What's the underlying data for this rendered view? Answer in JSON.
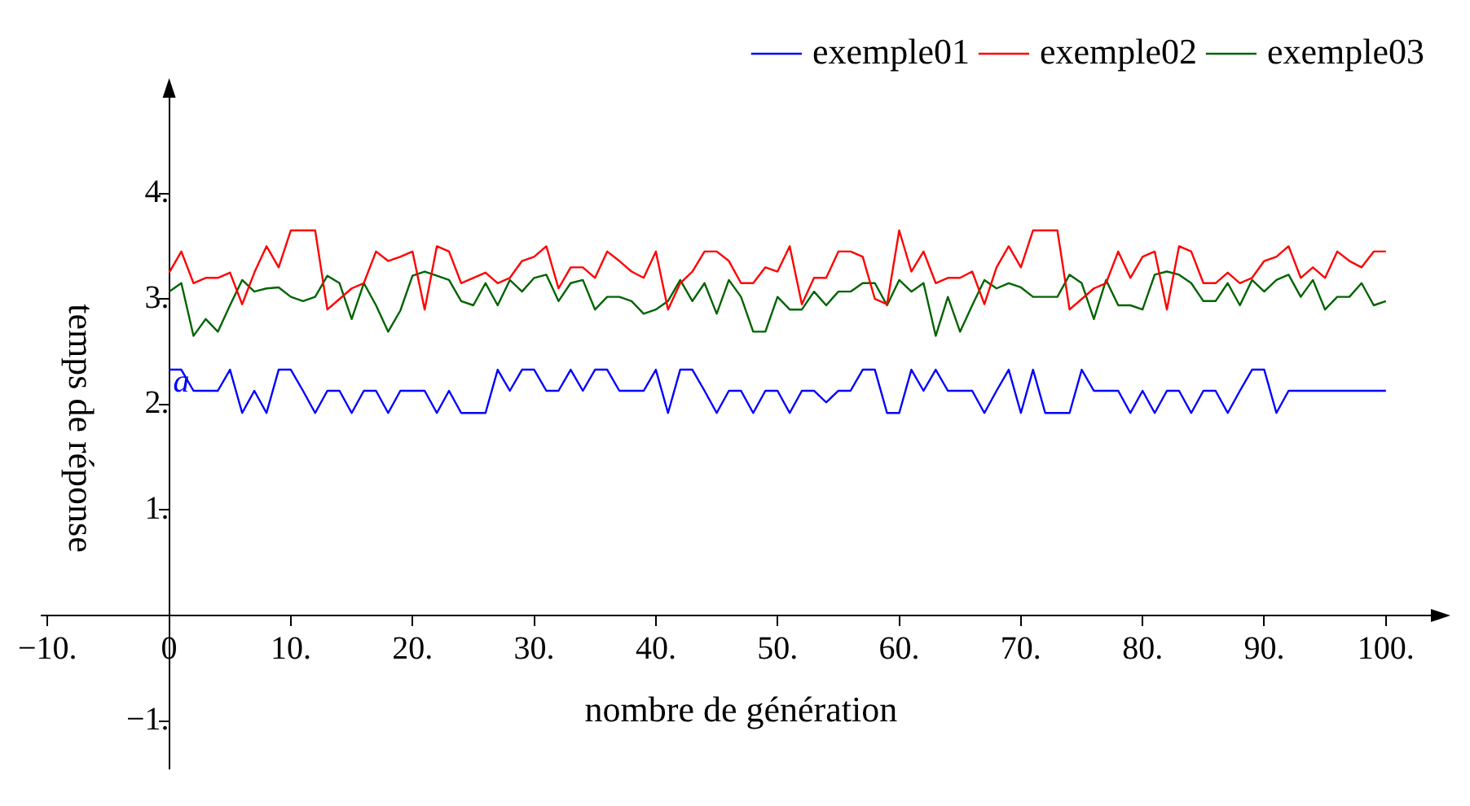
{
  "chart_data": {
    "type": "line",
    "xlabel": "nombre de génération",
    "ylabel": "temps de réponse",
    "x": [
      0,
      1,
      2,
      3,
      4,
      5,
      6,
      7,
      8,
      9,
      10,
      11,
      12,
      13,
      14,
      15,
      16,
      17,
      18,
      19,
      20,
      21,
      22,
      23,
      24,
      25,
      26,
      27,
      28,
      29,
      30,
      31,
      32,
      33,
      34,
      35,
      36,
      37,
      38,
      39,
      40,
      41,
      42,
      43,
      44,
      45,
      46,
      47,
      48,
      49,
      50,
      51,
      52,
      53,
      54,
      55,
      56,
      57,
      58,
      59,
      60,
      61,
      62,
      63,
      64,
      65,
      66,
      67,
      68,
      69,
      70,
      71,
      72,
      73,
      74,
      75,
      76,
      77,
      78,
      79,
      80,
      81,
      82,
      83,
      84,
      85,
      86,
      87,
      88,
      89,
      90,
      91,
      92,
      93,
      94,
      95,
      96,
      97,
      98,
      99,
      100
    ],
    "series": [
      {
        "name": "exemple01",
        "color": "#0000ff",
        "values": [
          2.33,
          2.33,
          2.13,
          2.13,
          2.13,
          2.33,
          1.92,
          2.13,
          1.92,
          2.33,
          2.33,
          2.13,
          1.92,
          2.13,
          2.13,
          1.92,
          2.13,
          2.13,
          1.92,
          2.13,
          2.13,
          2.13,
          1.92,
          2.13,
          1.92,
          1.92,
          1.92,
          2.33,
          2.13,
          2.33,
          2.33,
          2.13,
          2.13,
          2.33,
          2.13,
          2.33,
          2.33,
          2.13,
          2.13,
          2.13,
          2.33,
          1.92,
          2.33,
          2.33,
          2.13,
          1.92,
          2.13,
          2.13,
          1.92,
          2.13,
          2.13,
          1.92,
          2.13,
          2.13,
          2.02,
          2.13,
          2.13,
          2.33,
          2.33,
          1.92,
          1.92,
          2.33,
          2.13,
          2.33,
          2.13,
          2.13,
          2.13,
          1.92,
          2.13,
          2.33,
          1.92,
          2.33,
          1.92,
          1.92,
          1.92,
          2.33,
          2.13,
          2.13,
          2.13,
          1.92,
          2.13,
          1.92,
          2.13,
          2.13,
          1.92,
          2.13,
          2.13,
          1.92,
          2.13,
          2.33,
          2.33,
          1.92,
          2.13,
          2.13,
          2.13,
          2.13,
          2.13,
          2.13,
          2.13,
          2.13,
          2.13
        ]
      },
      {
        "name": "exemple02",
        "color": "#ff0000",
        "values": [
          3.25,
          3.45,
          3.15,
          3.2,
          3.2,
          3.25,
          2.95,
          3.25,
          3.5,
          3.3,
          3.65,
          3.65,
          3.65,
          2.9,
          3.0,
          3.1,
          3.15,
          3.45,
          3.36,
          3.4,
          3.45,
          2.9,
          3.5,
          3.45,
          3.15,
          3.2,
          3.25,
          3.15,
          3.2,
          3.36,
          3.4,
          3.5,
          3.1,
          3.3,
          3.3,
          3.2,
          3.45,
          3.36,
          3.26,
          3.2,
          3.45,
          2.9,
          3.15,
          3.26,
          3.45,
          3.45,
          3.36,
          3.15,
          3.15,
          3.3,
          3.26,
          3.5,
          2.95,
          3.2,
          3.2,
          3.45,
          3.45,
          3.4,
          3.0,
          2.95,
          3.65,
          3.26,
          3.45,
          3.15,
          3.2,
          3.2,
          3.26,
          2.95,
          3.3,
          3.5,
          3.3,
          3.65,
          3.65,
          3.65,
          2.9,
          3.0,
          3.1,
          3.15,
          3.45,
          3.2,
          3.4,
          3.45,
          2.9,
          3.5,
          3.45,
          3.15,
          3.15,
          3.25,
          3.15,
          3.2,
          3.36,
          3.4,
          3.5,
          3.2,
          3.3,
          3.2,
          3.45,
          3.36,
          3.3,
          3.45,
          3.45
        ]
      },
      {
        "name": "exemple03",
        "color": "#006400",
        "values": [
          3.07,
          3.15,
          2.65,
          2.81,
          2.69,
          2.94,
          3.18,
          3.07,
          3.1,
          3.11,
          3.02,
          2.98,
          3.02,
          3.22,
          3.15,
          2.81,
          3.15,
          2.94,
          2.69,
          2.89,
          3.22,
          3.26,
          3.22,
          3.18,
          2.98,
          2.94,
          3.15,
          2.94,
          3.18,
          3.07,
          3.2,
          3.23,
          2.98,
          3.15,
          3.18,
          2.9,
          3.02,
          3.02,
          2.98,
          2.86,
          2.9,
          2.98,
          3.18,
          2.98,
          3.15,
          2.86,
          3.18,
          3.02,
          2.69,
          2.69,
          3.02,
          2.9,
          2.9,
          3.07,
          2.94,
          3.07,
          3.07,
          3.15,
          3.15,
          2.94,
          3.18,
          3.07,
          3.15,
          2.65,
          3.02,
          2.69,
          2.94,
          3.18,
          3.1,
          3.15,
          3.11,
          3.02,
          3.02,
          3.02,
          3.23,
          3.15,
          2.81,
          3.18,
          2.94,
          2.94,
          2.9,
          3.23,
          3.26,
          3.23,
          3.15,
          2.98,
          2.98,
          3.15,
          2.94,
          3.18,
          3.07,
          3.18,
          3.23,
          3.02,
          3.18,
          2.9,
          3.02,
          3.02,
          3.15,
          2.94,
          2.98
        ]
      }
    ],
    "annotations": [
      {
        "text": "a",
        "x": 1,
        "y": 2.2
      }
    ],
    "xlim": [
      -10.5,
      104.5
    ],
    "xticks": [
      {
        "value": -10,
        "label": "−10."
      },
      0,
      {
        "value": 10,
        "label": "10."
      },
      {
        "value": 20,
        "label": "20."
      },
      {
        "value": 30,
        "label": "30."
      },
      {
        "value": 40,
        "label": "40."
      },
      {
        "value": 50,
        "label": "50."
      },
      {
        "value": 60,
        "label": "60."
      },
      {
        "value": 70,
        "label": "70."
      },
      {
        "value": 80,
        "label": "80."
      },
      {
        "value": 90,
        "label": "90."
      },
      {
        "value": 100,
        "label": "100."
      }
    ],
    "ylim": [
      -1.45,
      5
    ],
    "yticks": [
      {
        "value": -1,
        "label": "−1."
      },
      {
        "value": 1,
        "label": "1."
      },
      {
        "value": 2,
        "label": "2."
      },
      {
        "value": 3,
        "label": "3."
      },
      {
        "value": 4,
        "label": "4."
      }
    ],
    "legend": "top",
    "marker": "none",
    "line_style": "solid"
  }
}
